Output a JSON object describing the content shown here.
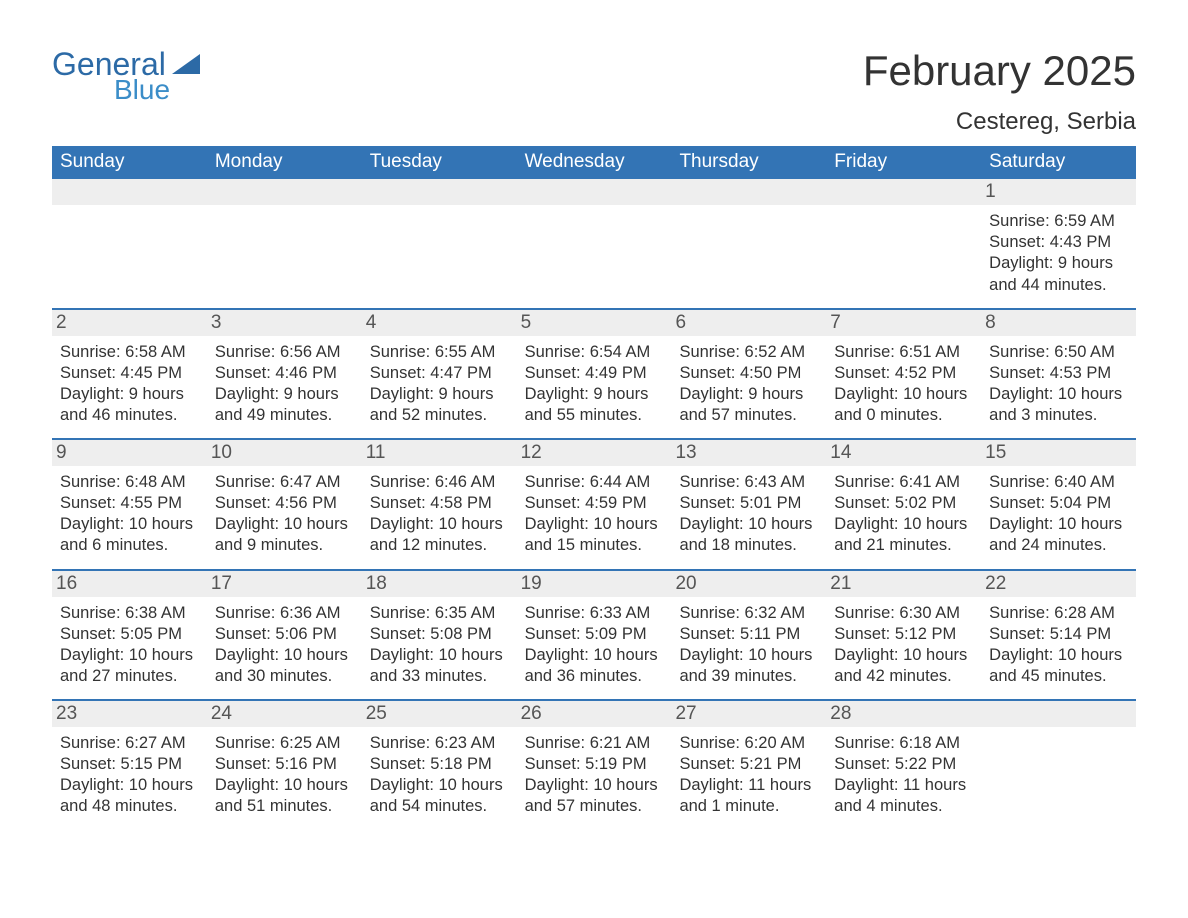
{
  "logo": {
    "word1": "General",
    "word2": "Blue"
  },
  "title": "February 2025",
  "location": "Cestereg, Serbia",
  "colors": {
    "header_bg": "#3374b5",
    "header_text": "#ffffff",
    "daynum_bg": "#eeeeee",
    "daynum_text": "#555555",
    "body_text": "#333333",
    "rule": "#3374b5",
    "logo_dark": "#2c6aa6",
    "logo_light": "#3b8dc8",
    "page_bg": "#ffffff"
  },
  "fonts": {
    "family": "Arial, Helvetica, sans-serif",
    "title_size_pt": 32,
    "location_size_pt": 18,
    "weekday_size_pt": 14,
    "daynum_size_pt": 14,
    "body_size_pt": 12
  },
  "weekdays": [
    "Sunday",
    "Monday",
    "Tuesday",
    "Wednesday",
    "Thursday",
    "Friday",
    "Saturday"
  ],
  "weeks": [
    [
      null,
      null,
      null,
      null,
      null,
      null,
      {
        "n": "1",
        "sunrise": "Sunrise: 6:59 AM",
        "sunset": "Sunset: 4:43 PM",
        "daylight": "Daylight: 9 hours and 44 minutes."
      }
    ],
    [
      {
        "n": "2",
        "sunrise": "Sunrise: 6:58 AM",
        "sunset": "Sunset: 4:45 PM",
        "daylight": "Daylight: 9 hours and 46 minutes."
      },
      {
        "n": "3",
        "sunrise": "Sunrise: 6:56 AM",
        "sunset": "Sunset: 4:46 PM",
        "daylight": "Daylight: 9 hours and 49 minutes."
      },
      {
        "n": "4",
        "sunrise": "Sunrise: 6:55 AM",
        "sunset": "Sunset: 4:47 PM",
        "daylight": "Daylight: 9 hours and 52 minutes."
      },
      {
        "n": "5",
        "sunrise": "Sunrise: 6:54 AM",
        "sunset": "Sunset: 4:49 PM",
        "daylight": "Daylight: 9 hours and 55 minutes."
      },
      {
        "n": "6",
        "sunrise": "Sunrise: 6:52 AM",
        "sunset": "Sunset: 4:50 PM",
        "daylight": "Daylight: 9 hours and 57 minutes."
      },
      {
        "n": "7",
        "sunrise": "Sunrise: 6:51 AM",
        "sunset": "Sunset: 4:52 PM",
        "daylight": "Daylight: 10 hours and 0 minutes."
      },
      {
        "n": "8",
        "sunrise": "Sunrise: 6:50 AM",
        "sunset": "Sunset: 4:53 PM",
        "daylight": "Daylight: 10 hours and 3 minutes."
      }
    ],
    [
      {
        "n": "9",
        "sunrise": "Sunrise: 6:48 AM",
        "sunset": "Sunset: 4:55 PM",
        "daylight": "Daylight: 10 hours and 6 minutes."
      },
      {
        "n": "10",
        "sunrise": "Sunrise: 6:47 AM",
        "sunset": "Sunset: 4:56 PM",
        "daylight": "Daylight: 10 hours and 9 minutes."
      },
      {
        "n": "11",
        "sunrise": "Sunrise: 6:46 AM",
        "sunset": "Sunset: 4:58 PM",
        "daylight": "Daylight: 10 hours and 12 minutes."
      },
      {
        "n": "12",
        "sunrise": "Sunrise: 6:44 AM",
        "sunset": "Sunset: 4:59 PM",
        "daylight": "Daylight: 10 hours and 15 minutes."
      },
      {
        "n": "13",
        "sunrise": "Sunrise: 6:43 AM",
        "sunset": "Sunset: 5:01 PM",
        "daylight": "Daylight: 10 hours and 18 minutes."
      },
      {
        "n": "14",
        "sunrise": "Sunrise: 6:41 AM",
        "sunset": "Sunset: 5:02 PM",
        "daylight": "Daylight: 10 hours and 21 minutes."
      },
      {
        "n": "15",
        "sunrise": "Sunrise: 6:40 AM",
        "sunset": "Sunset: 5:04 PM",
        "daylight": "Daylight: 10 hours and 24 minutes."
      }
    ],
    [
      {
        "n": "16",
        "sunrise": "Sunrise: 6:38 AM",
        "sunset": "Sunset: 5:05 PM",
        "daylight": "Daylight: 10 hours and 27 minutes."
      },
      {
        "n": "17",
        "sunrise": "Sunrise: 6:36 AM",
        "sunset": "Sunset: 5:06 PM",
        "daylight": "Daylight: 10 hours and 30 minutes."
      },
      {
        "n": "18",
        "sunrise": "Sunrise: 6:35 AM",
        "sunset": "Sunset: 5:08 PM",
        "daylight": "Daylight: 10 hours and 33 minutes."
      },
      {
        "n": "19",
        "sunrise": "Sunrise: 6:33 AM",
        "sunset": "Sunset: 5:09 PM",
        "daylight": "Daylight: 10 hours and 36 minutes."
      },
      {
        "n": "20",
        "sunrise": "Sunrise: 6:32 AM",
        "sunset": "Sunset: 5:11 PM",
        "daylight": "Daylight: 10 hours and 39 minutes."
      },
      {
        "n": "21",
        "sunrise": "Sunrise: 6:30 AM",
        "sunset": "Sunset: 5:12 PM",
        "daylight": "Daylight: 10 hours and 42 minutes."
      },
      {
        "n": "22",
        "sunrise": "Sunrise: 6:28 AM",
        "sunset": "Sunset: 5:14 PM",
        "daylight": "Daylight: 10 hours and 45 minutes."
      }
    ],
    [
      {
        "n": "23",
        "sunrise": "Sunrise: 6:27 AM",
        "sunset": "Sunset: 5:15 PM",
        "daylight": "Daylight: 10 hours and 48 minutes."
      },
      {
        "n": "24",
        "sunrise": "Sunrise: 6:25 AM",
        "sunset": "Sunset: 5:16 PM",
        "daylight": "Daylight: 10 hours and 51 minutes."
      },
      {
        "n": "25",
        "sunrise": "Sunrise: 6:23 AM",
        "sunset": "Sunset: 5:18 PM",
        "daylight": "Daylight: 10 hours and 54 minutes."
      },
      {
        "n": "26",
        "sunrise": "Sunrise: 6:21 AM",
        "sunset": "Sunset: 5:19 PM",
        "daylight": "Daylight: 10 hours and 57 minutes."
      },
      {
        "n": "27",
        "sunrise": "Sunrise: 6:20 AM",
        "sunset": "Sunset: 5:21 PM",
        "daylight": "Daylight: 11 hours and 1 minute."
      },
      {
        "n": "28",
        "sunrise": "Sunrise: 6:18 AM",
        "sunset": "Sunset: 5:22 PM",
        "daylight": "Daylight: 11 hours and 4 minutes."
      },
      null
    ]
  ]
}
